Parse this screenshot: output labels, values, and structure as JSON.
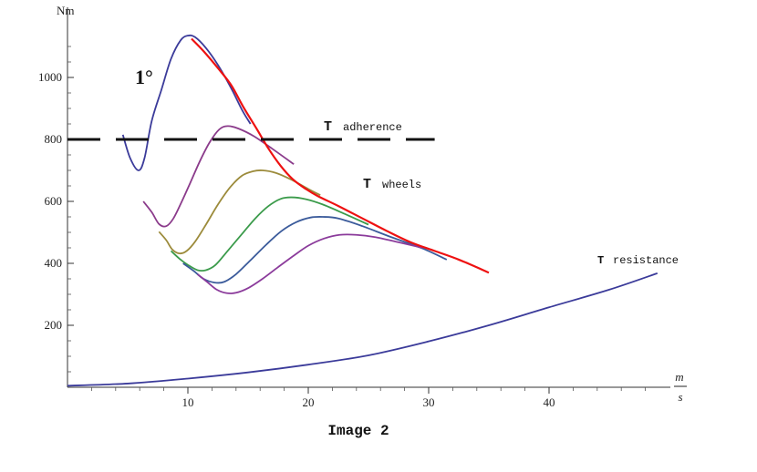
{
  "chart_data": {
    "type": "line",
    "caption": "Image 2",
    "ylabel": "Nm",
    "xunit": {
      "numerator": "m",
      "denominator": "s"
    },
    "xlim": [
      0,
      50
    ],
    "ylim": [
      0,
      1180
    ],
    "x_ticks": [
      10,
      20,
      30,
      40
    ],
    "y_ticks": [
      200,
      400,
      600,
      800,
      1000
    ],
    "annotations": {
      "gear": "1°",
      "adherence_T": "T",
      "adherence_text": "adherence",
      "wheels_T": "T",
      "wheels_text": "wheels",
      "resistance_T": "T",
      "resistance_text": "resistance"
    },
    "series": [
      {
        "color": "#3b3b9a",
        "dashed": false,
        "points": [
          [
            4.6,
            815
          ],
          [
            5.2,
            740
          ],
          [
            5.9,
            700
          ],
          [
            6.4,
            740
          ],
          [
            7,
            860
          ],
          [
            7.8,
            960
          ],
          [
            8.6,
            1060
          ],
          [
            9.4,
            1120
          ],
          [
            10,
            1135
          ],
          [
            10.6,
            1130
          ],
          [
            11.5,
            1095
          ],
          [
            12.5,
            1040
          ],
          [
            13.6,
            965
          ],
          [
            14.5,
            895
          ],
          [
            15.2,
            850
          ]
        ]
      },
      {
        "color": "#8b3b8b",
        "dashed": false,
        "points": [
          [
            6.3,
            600
          ],
          [
            7,
            565
          ],
          [
            7.6,
            527
          ],
          [
            8.2,
            520
          ],
          [
            8.8,
            545
          ],
          [
            9.5,
            600
          ],
          [
            10.2,
            660
          ],
          [
            11,
            730
          ],
          [
            11.8,
            790
          ],
          [
            12.6,
            832
          ],
          [
            13.3,
            843
          ],
          [
            14.2,
            835
          ],
          [
            15.5,
            810
          ],
          [
            17,
            770
          ],
          [
            18.8,
            720
          ]
        ]
      },
      {
        "color": "#9c8b3b",
        "dashed": false,
        "points": [
          [
            7.6,
            502
          ],
          [
            8.2,
            475
          ],
          [
            8.7,
            445
          ],
          [
            9.3,
            432
          ],
          [
            9.9,
            440
          ],
          [
            10.6,
            470
          ],
          [
            11.5,
            525
          ],
          [
            12.5,
            590
          ],
          [
            13.5,
            645
          ],
          [
            14.5,
            683
          ],
          [
            15.4,
            697
          ],
          [
            16.2,
            700
          ],
          [
            17.3,
            692
          ],
          [
            18.6,
            670
          ],
          [
            20,
            640
          ],
          [
            21,
            620
          ]
        ]
      },
      {
        "color": "#3b9b4b",
        "dashed": false,
        "points": [
          [
            8.6,
            440
          ],
          [
            9.3,
            415
          ],
          [
            10,
            395
          ],
          [
            10.8,
            378
          ],
          [
            11.5,
            378
          ],
          [
            12.3,
            395
          ],
          [
            13.3,
            440
          ],
          [
            14.5,
            495
          ],
          [
            15.6,
            545
          ],
          [
            16.7,
            585
          ],
          [
            17.7,
            608
          ],
          [
            18.6,
            613
          ],
          [
            19.8,
            607
          ],
          [
            21.2,
            590
          ],
          [
            23,
            560
          ],
          [
            25,
            525
          ]
        ]
      },
      {
        "color": "#3b5b9b",
        "dashed": false,
        "points": [
          [
            9.6,
            400
          ],
          [
            10.5,
            375
          ],
          [
            11.3,
            350
          ],
          [
            12.2,
            338
          ],
          [
            13,
            340
          ],
          [
            14,
            365
          ],
          [
            15.2,
            410
          ],
          [
            16.5,
            460
          ],
          [
            17.8,
            505
          ],
          [
            19,
            533
          ],
          [
            20.2,
            548
          ],
          [
            21.2,
            550
          ],
          [
            22.5,
            545
          ],
          [
            24.5,
            520
          ],
          [
            27,
            483
          ],
          [
            29.5,
            448
          ],
          [
            31.5,
            412
          ]
        ]
      },
      {
        "color": "#8b3b9b",
        "dashed": false,
        "points": [
          [
            10.8,
            365
          ],
          [
            11.6,
            340
          ],
          [
            12.4,
            315
          ],
          [
            13.2,
            304
          ],
          [
            14,
            305
          ],
          [
            15,
            320
          ],
          [
            16.2,
            350
          ],
          [
            17.5,
            388
          ],
          [
            18.8,
            425
          ],
          [
            20,
            457
          ],
          [
            21.3,
            480
          ],
          [
            22.6,
            492
          ],
          [
            24,
            492
          ],
          [
            25.5,
            485
          ],
          [
            27.5,
            468
          ],
          [
            29.5,
            450
          ]
        ]
      },
      {
        "color": "#ee1111",
        "dashed": false,
        "points": [
          [
            10.3,
            1125
          ],
          [
            11.3,
            1085
          ],
          [
            12.5,
            1030
          ],
          [
            13.6,
            975
          ],
          [
            14.6,
            905
          ],
          [
            15.7,
            835
          ],
          [
            16.7,
            770
          ],
          [
            17.7,
            715
          ],
          [
            18.7,
            672
          ],
          [
            19.8,
            640
          ],
          [
            20.8,
            617
          ],
          [
            22.5,
            585
          ],
          [
            24.5,
            545
          ],
          [
            26.5,
            505
          ],
          [
            28.5,
            468
          ],
          [
            30.5,
            440
          ],
          [
            32.5,
            412
          ],
          [
            35,
            370
          ]
        ]
      },
      {
        "color": "#111111",
        "dashed": true,
        "points": [
          [
            0,
            800
          ],
          [
            30.5,
            800
          ]
        ]
      },
      {
        "color": "#3b3b9a",
        "dashed": false,
        "points": [
          [
            0,
            5
          ],
          [
            5,
            12
          ],
          [
            10,
            28
          ],
          [
            15,
            48
          ],
          [
            20,
            73
          ],
          [
            25,
            103
          ],
          [
            30,
            148
          ],
          [
            35,
            200
          ],
          [
            40,
            258
          ],
          [
            45,
            315
          ],
          [
            49,
            368
          ]
        ]
      }
    ]
  }
}
